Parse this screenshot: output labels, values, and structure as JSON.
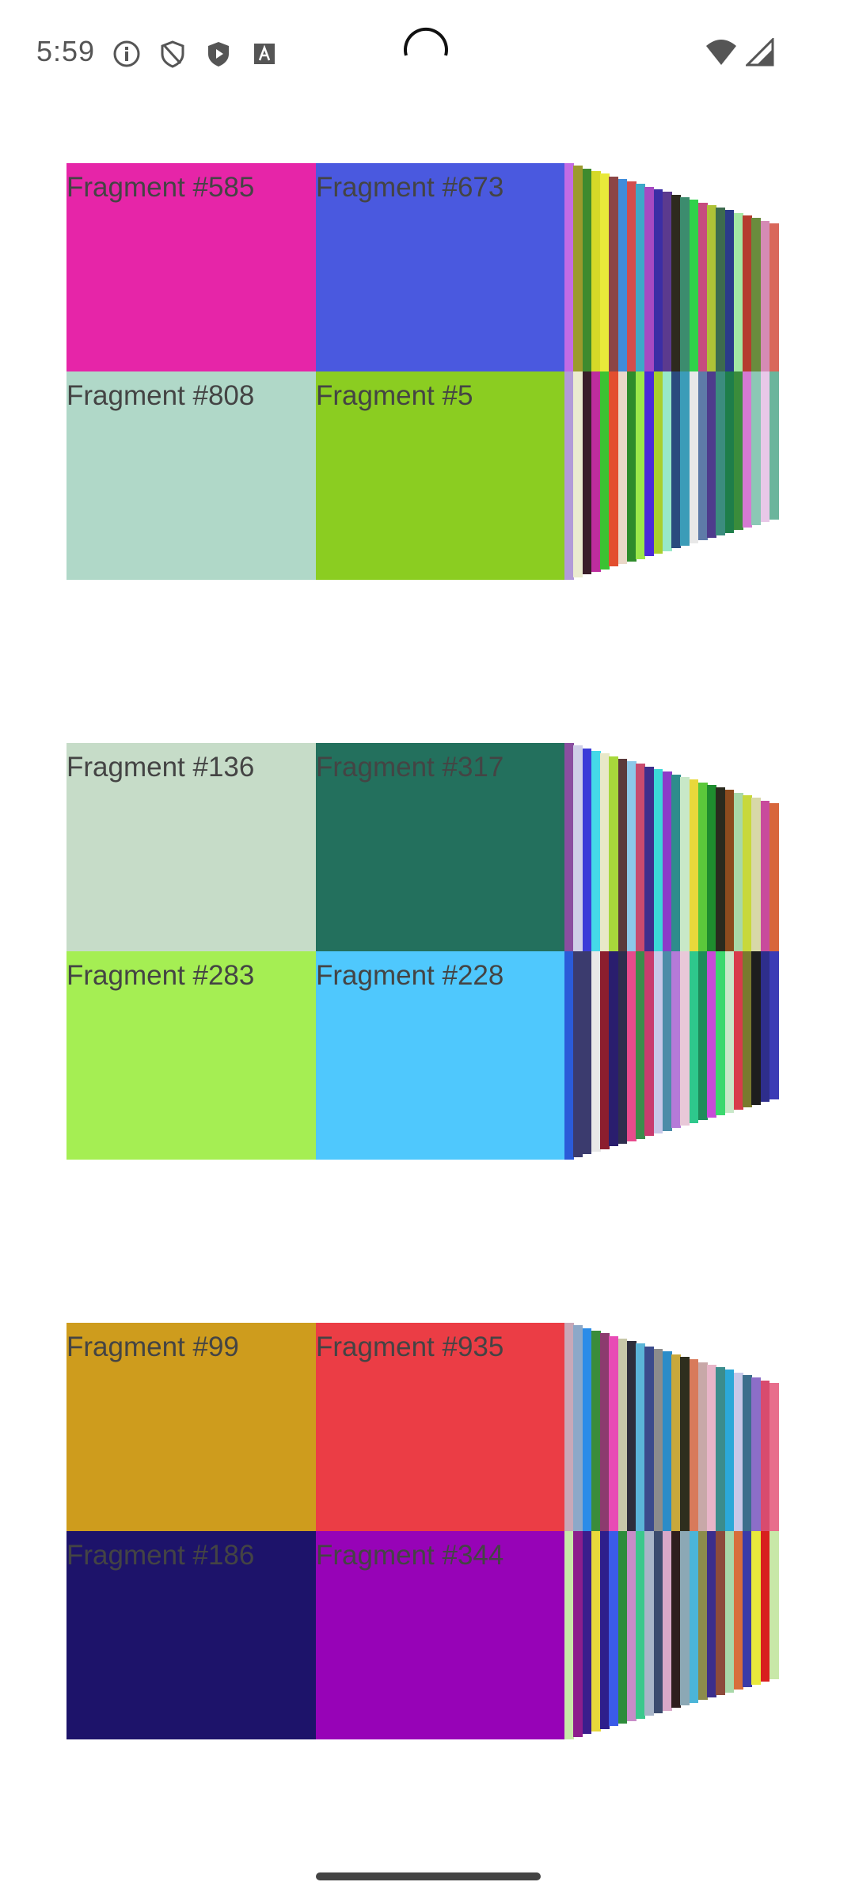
{
  "status_bar": {
    "time": "5:59",
    "icons": [
      "info-icon",
      "shield-icon",
      "shield-play-icon",
      "font-icon"
    ],
    "right_icons": [
      "wifi-icon",
      "signal-icon"
    ]
  },
  "groups": [
    {
      "tiles": [
        {
          "label": "Fragment #585",
          "color": "#E625A8"
        },
        {
          "label": "Fragment #673",
          "color": "#4A59DF"
        },
        {
          "label": "Fragment #808",
          "color": "#B0D8C8"
        },
        {
          "label": "Fragment #5",
          "color": "#8BCD21"
        }
      ],
      "strip_colors_top": [
        "#C36BE4",
        "#9C9A2C",
        "#3E8A2E",
        "#D5D928",
        "#E9E93A",
        "#8C4545",
        "#3F8CDB",
        "#D24D4D",
        "#3DA8C8",
        "#A64AC2",
        "#3B2EA5",
        "#5B3A8E",
        "#2E2A1E",
        "#3C8C6E",
        "#2FD24A",
        "#C64C7F",
        "#AFC237",
        "#3D6B4E",
        "#2B3B8A",
        "#A4E8A4",
        "#B53C2E",
        "#6A8C3D",
        "#D58BB5",
        "#D9675A"
      ],
      "strip_colors_bot": [
        "#B29BD8",
        "#EBEBD0",
        "#3A1E2A",
        "#BD2D9E",
        "#3BC232",
        "#E34E2E",
        "#EAD8C8",
        "#2E8C2B",
        "#9CE84A",
        "#4B2AD8",
        "#A9CE2C",
        "#98E8C8",
        "#2B4B7E",
        "#3B9CB8",
        "#E8E8E8",
        "#5E7BA8",
        "#4E3B8C",
        "#3B8C7E",
        "#1E7E4A",
        "#3A8C3B",
        "#D57AD2",
        "#8CC8B5",
        "#E8C8E8",
        "#6BB59C"
      ]
    },
    {
      "tiles": [
        {
          "label": "Fragment #136",
          "color": "#C6DCC8"
        },
        {
          "label": "Fragment #317",
          "color": "#23705D"
        },
        {
          "label": "Fragment #283",
          "color": "#A5EE53"
        },
        {
          "label": "Fragment #228",
          "color": "#4FC8FD"
        }
      ],
      "strip_colors_top": [
        "#8A4EA0",
        "#CFCFE8",
        "#3B3BD8",
        "#45D8E8",
        "#E8E8C8",
        "#A8D83B",
        "#5B3A3B",
        "#8CC8E8",
        "#C84B6E",
        "#3E2E8C",
        "#3BD8D8",
        "#8C3BC8",
        "#2E8C8C",
        "#C8E8C8",
        "#E8D83B",
        "#5BC83B",
        "#1E8C2E",
        "#2A2A1E",
        "#8C4B1E",
        "#A8D8A8",
        "#C8D83B",
        "#D8D8A8",
        "#C84B9C",
        "#D8663B"
      ],
      "strip_colors_bot": [
        "#2B5BD8",
        "#3B3B6E",
        "#3B3B6E",
        "#E8E8E8",
        "#8C1E2E",
        "#2A1E6E",
        "#2E2E4E",
        "#E84B8C",
        "#3B8C4B",
        "#C83B6E",
        "#C8C8E8",
        "#4B8CA8",
        "#B57AD8",
        "#E8C8D8",
        "#2EC88C",
        "#1E8C5B",
        "#C84BD8",
        "#3BD86E",
        "#C8E8C8",
        "#D83B4B",
        "#7A7A2E",
        "#1E1E1E",
        "#2E2E8C",
        "#3B3BB5"
      ]
    },
    {
      "tiles": [
        {
          "label": "Fragment #99",
          "color": "#CE9C1D"
        },
        {
          "label": "Fragment #935",
          "color": "#EB3D45"
        },
        {
          "label": "Fragment #186",
          "color": "#1D136A"
        },
        {
          "label": "Fragment #344",
          "color": "#9703B7"
        }
      ],
      "strip_colors_top": [
        "#C8A8B8",
        "#8CA8C8",
        "#2B8CE8",
        "#3B8C3B",
        "#8C3B6E",
        "#E84BB5",
        "#C8C8A8",
        "#2E2E3B",
        "#5BB5D8",
        "#3B4B8C",
        "#8C8C8C",
        "#2B8CC8",
        "#C8A83B",
        "#2E2E1E",
        "#D87A5B",
        "#C8A8A8",
        "#E8B5C8",
        "#3B8C8C",
        "#2BA8D8",
        "#C8C8E8",
        "#3B6E8C",
        "#8C6EC8",
        "#D84B6E",
        "#E86E8C"
      ],
      "strip_colors_bot": [
        "#C8E8A8",
        "#8C1E8C",
        "#3B1E8C",
        "#E8D83B",
        "#2E1E8C",
        "#3B5BE8",
        "#2E8C3B",
        "#C88CC8",
        "#3BC88C",
        "#A8B5C8",
        "#3B4B6E",
        "#D8A8C8",
        "#2E1E1E",
        "#8CA8B5",
        "#4BB5D8",
        "#8C8C4B",
        "#3B2E8C",
        "#8C4B3B",
        "#A8D8A8",
        "#D86E3B",
        "#3B3BA8",
        "#E8E83B",
        "#D81E1E",
        "#C8E8A8"
      ]
    }
  ]
}
